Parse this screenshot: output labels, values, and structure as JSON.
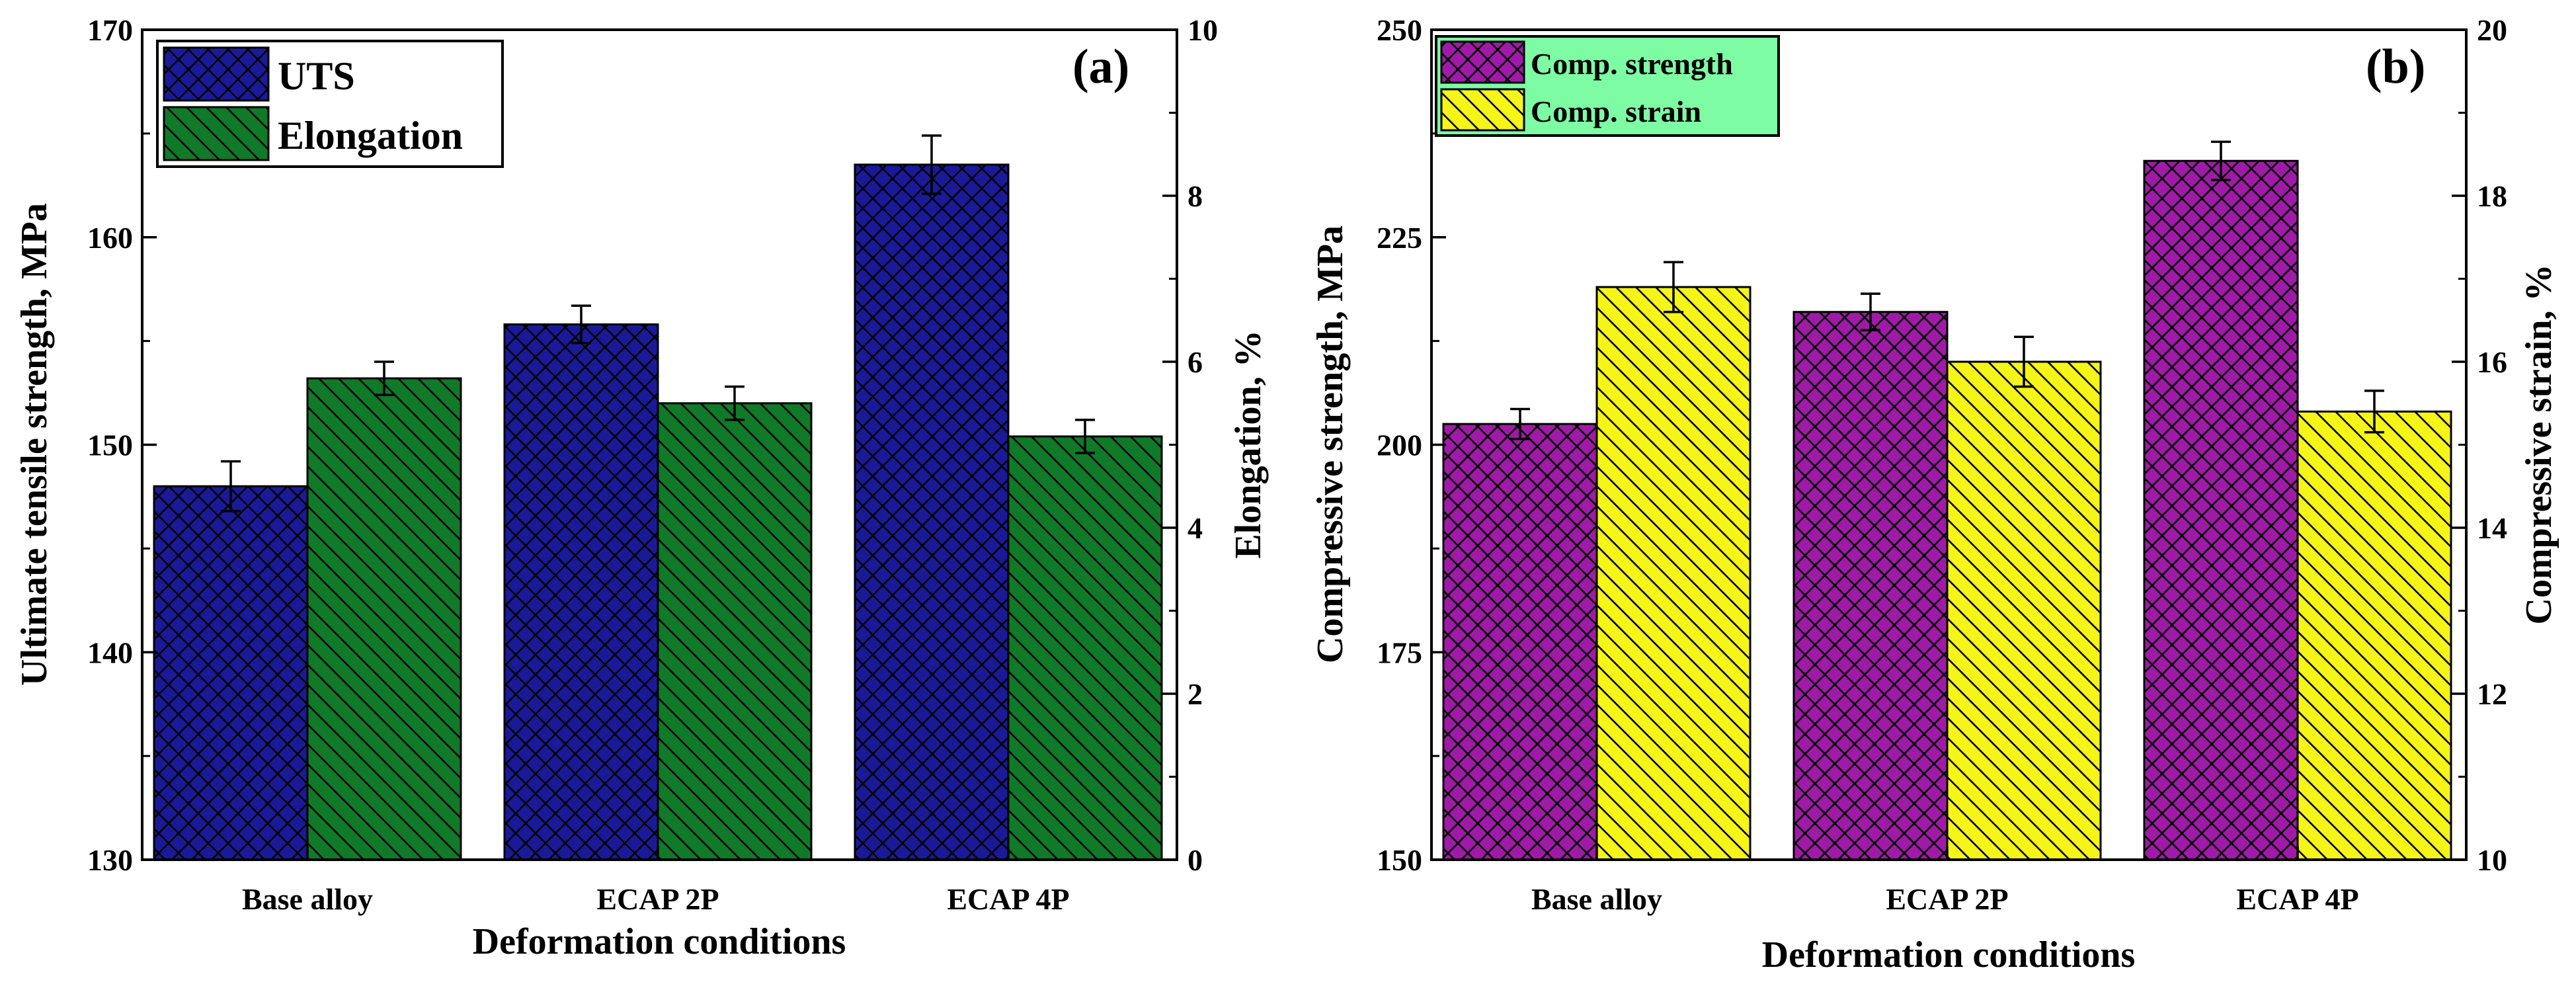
{
  "colors": {
    "uts": "#1a1a99",
    "elongation": "#107a28",
    "comp_strength": "#a01aa8",
    "comp_strain": "#f5f518",
    "legend_b_bg": "#7dfca3"
  },
  "chart_data": [
    {
      "type": "bar",
      "panel_label": "(a)",
      "title": "",
      "xlabel": "Deformation conditions",
      "ylabel": "Ultimate tensile strength, MPa",
      "y2label": "Elongation, %",
      "categories": [
        "Base alloy",
        "ECAP 2P",
        "ECAP 4P"
      ],
      "ylim": [
        130,
        170
      ],
      "yticks": [
        130,
        140,
        150,
        160,
        170
      ],
      "y2lim": [
        0,
        10
      ],
      "y2ticks": [
        0,
        2,
        4,
        6,
        8,
        10
      ],
      "legend_location": "top-left",
      "series": [
        {
          "name": "UTS",
          "axis": "left",
          "values": [
            148.0,
            155.8,
            163.5
          ],
          "errors": [
            1.2,
            0.9,
            1.4
          ],
          "hatch": "crosshatch",
          "color_key": "uts"
        },
        {
          "name": "Elongation",
          "axis": "right",
          "values": [
            5.8,
            5.5,
            5.1
          ],
          "errors": [
            0.2,
            0.2,
            0.2
          ],
          "hatch": "diagonal",
          "color_key": "elongation"
        }
      ]
    },
    {
      "type": "bar",
      "panel_label": "(b)",
      "title": "",
      "xlabel": "Deformation conditions",
      "ylabel": "Compressive strength, MPa",
      "y2label": "Compressive strain, %",
      "categories": [
        "Base alloy",
        "ECAP 2P",
        "ECAP 4P"
      ],
      "ylim": [
        150,
        250
      ],
      "yticks": [
        150,
        175,
        200,
        225,
        250
      ],
      "y2lim": [
        10,
        20
      ],
      "y2ticks": [
        10,
        12,
        14,
        16,
        18,
        20
      ],
      "legend_location": "top-left",
      "series": [
        {
          "name": "Comp. strength",
          "axis": "left",
          "values": [
            202.5,
            216.0,
            234.2
          ],
          "errors": [
            1.8,
            2.2,
            2.3
          ],
          "hatch": "crosshatch",
          "color_key": "comp_strength"
        },
        {
          "name": "Comp. strain",
          "axis": "right",
          "values": [
            16.9,
            16.0,
            15.4
          ],
          "errors": [
            0.3,
            0.3,
            0.25
          ],
          "hatch": "diagonal",
          "color_key": "comp_strain"
        }
      ]
    }
  ]
}
